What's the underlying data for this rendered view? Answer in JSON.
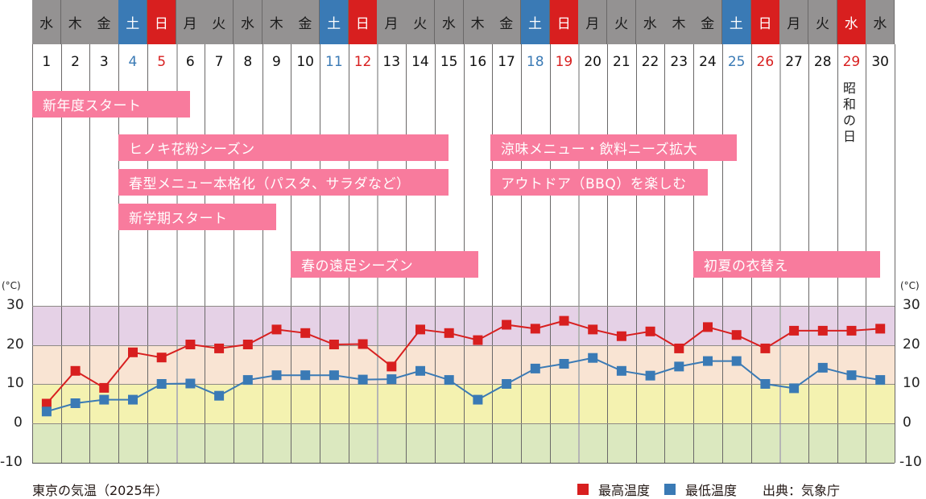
{
  "chart_data": {
    "type": "line",
    "title": "東京の気温（2025年）",
    "source": "出典：気象庁",
    "xlabel": "",
    "ylabel": "(°C)",
    "ylim": [
      -10,
      30
    ],
    "yticks": [
      30,
      20,
      10,
      0,
      -10
    ],
    "grid": true,
    "legend_position": "bottom-right",
    "x": [
      1,
      2,
      3,
      4,
      5,
      6,
      7,
      8,
      9,
      10,
      11,
      12,
      13,
      14,
      15,
      16,
      17,
      18,
      19,
      20,
      21,
      22,
      23,
      24,
      25,
      26,
      27,
      28,
      29,
      30
    ],
    "series": [
      {
        "name": "最高温度",
        "color": "#d81f1f",
        "values": [
          5,
          13.3,
          9,
          18,
          16.7,
          20,
          19,
          20,
          23.8,
          22.9,
          20,
          20.1,
          14.4,
          23.8,
          22.9,
          21.1,
          25,
          24,
          26,
          23.8,
          22.1,
          23.3,
          19,
          24.4,
          22.4,
          19,
          23.5,
          23.5,
          23.5,
          24
        ]
      },
      {
        "name": "最低温度",
        "color": "#3a7ab5",
        "values": [
          3,
          5.1,
          6,
          6,
          10,
          10.1,
          7,
          11,
          12.2,
          12.2,
          12.2,
          11.1,
          11.2,
          13.3,
          11,
          6,
          10,
          13.9,
          15.1,
          16.6,
          13.3,
          12.1,
          14.4,
          15.8,
          15.8,
          10,
          8.9,
          14.1,
          12.2,
          11
        ]
      }
    ],
    "temperature_bands": [
      {
        "from": 20,
        "to": 30,
        "color": "#e5d1e6"
      },
      {
        "from": 10,
        "to": 20,
        "color": "#f9e4d3"
      },
      {
        "from": 0,
        "to": 10,
        "color": "#f4f2b0"
      },
      {
        "from": -10,
        "to": 0,
        "color": "#dbe8bf"
      }
    ]
  },
  "calendar": {
    "weekdays": [
      "水",
      "木",
      "金",
      "土",
      "日",
      "月",
      "火",
      "水",
      "木",
      "金",
      "土",
      "日",
      "月",
      "火",
      "水",
      "木",
      "金",
      "土",
      "日",
      "月",
      "火",
      "水",
      "木",
      "金",
      "土",
      "日",
      "月",
      "火",
      "水",
      "水"
    ],
    "day_types": [
      "w",
      "w",
      "w",
      "sat",
      "sun",
      "w",
      "w",
      "w",
      "w",
      "w",
      "sat",
      "sun",
      "w",
      "w",
      "w",
      "w",
      "w",
      "sat",
      "sun",
      "w",
      "w",
      "w",
      "w",
      "w",
      "sat",
      "sun",
      "w",
      "w",
      "sun",
      "w"
    ],
    "days": [
      "1",
      "2",
      "3",
      "4",
      "5",
      "6",
      "7",
      "8",
      "9",
      "10",
      "11",
      "12",
      "13",
      "14",
      "15",
      "16",
      "17",
      "18",
      "19",
      "20",
      "21",
      "22",
      "23",
      "24",
      "25",
      "26",
      "27",
      "28",
      "29",
      "30"
    ],
    "holiday": {
      "day": 29,
      "label": [
        "昭",
        "和",
        "の",
        "日"
      ]
    }
  },
  "events": [
    {
      "label": "新年度スタート",
      "start_day": 1,
      "end_day": 6
    },
    {
      "label": "ヒノキ花粉シーズン",
      "start_day": 4,
      "end_day": 15
    },
    {
      "label": "春型メニュー本格化（パスタ、サラダなど）",
      "start_day": 4,
      "end_day": 15
    },
    {
      "label": "新学期スタート",
      "start_day": 4,
      "end_day": 9
    },
    {
      "label": "春の遠足シーズン",
      "start_day": 10,
      "end_day": 16
    },
    {
      "label": "涼味メニュー・飲料ニーズ拡大",
      "start_day": 17,
      "end_day": 24
    },
    {
      "label": "アウトドア（BBQ）を楽しむ",
      "start_day": 17,
      "end_day": 23
    },
    {
      "label": "初夏の衣替え",
      "start_day": 24,
      "end_day": 30
    }
  ],
  "axis": {
    "unit_left": "(°C)",
    "unit_right": "(°C)",
    "ticks": [
      "30",
      "20",
      "10",
      "0",
      "-10"
    ]
  },
  "footer": {
    "title": "東京の気温（2025年）",
    "legend_max": "最高温度",
    "legend_min": "最低温度",
    "source": "出典：気象庁"
  }
}
